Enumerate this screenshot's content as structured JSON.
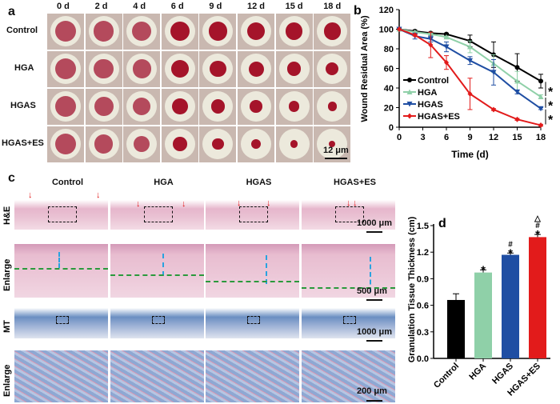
{
  "panel_a": {
    "label": "a",
    "days": [
      "0 d",
      "2 d",
      "4 d",
      "6 d",
      "9 d",
      "12 d",
      "15 d",
      "18 d"
    ],
    "groups": [
      "Control",
      "HGA",
      "HGAS",
      "HGAS+ES"
    ],
    "scale": "12 μm"
  },
  "panel_c": {
    "label": "c",
    "groups": [
      "Control",
      "HGA",
      "HGAS",
      "HGAS+ES"
    ],
    "rows": [
      "H&E",
      "Enlarge",
      "MT",
      "Enlarge"
    ],
    "scales": [
      "1000 μm",
      "500 μm",
      "1000 μm",
      "200 μm"
    ]
  },
  "colors": {
    "control": "#000000",
    "hga": "#8fd0a8",
    "hgas": "#1f4ea3",
    "hgas_es": "#e21b1b"
  },
  "chart_data": [
    {
      "type": "line",
      "panel_label": "b",
      "title": "",
      "xlabel": "Time (d)",
      "ylabel": "Wound Residual Area (%)",
      "xlim": [
        0,
        18
      ],
      "ylim": [
        0,
        120
      ],
      "xticks": [
        0,
        3,
        6,
        9,
        12,
        15,
        18
      ],
      "yticks": [
        0,
        20,
        40,
        60,
        80,
        100,
        120
      ],
      "legend_position": "bottom-left",
      "x": [
        0,
        2,
        4,
        6,
        9,
        12,
        15,
        18
      ],
      "series": [
        {
          "name": "Control",
          "color": "#000000",
          "marker": "circle",
          "values": [
            100,
            98,
            96,
            95,
            88,
            74,
            61,
            47
          ],
          "errors": [
            0,
            1,
            1,
            1,
            6,
            13,
            14,
            7
          ]
        },
        {
          "name": "HGA",
          "color": "#8fd0a8",
          "marker": "triangle-up",
          "values": [
            100,
            97,
            95,
            92,
            82,
            65,
            47,
            31
          ],
          "errors": [
            0,
            1,
            1,
            1,
            6,
            9,
            10,
            2
          ]
        },
        {
          "name": "HGAS",
          "color": "#1f4ea3",
          "marker": "triangle-down",
          "values": [
            100,
            93,
            90,
            82,
            68,
            56,
            36,
            19
          ],
          "errors": [
            0,
            3,
            3,
            5,
            4,
            13,
            2,
            1
          ]
        },
        {
          "name": "HGAS+ES",
          "color": "#e21b1b",
          "marker": "diamond",
          "values": [
            100,
            94,
            84,
            66,
            34,
            18,
            8,
            2
          ],
          "errors": [
            0,
            1,
            13,
            7,
            16,
            1,
            1,
            1
          ]
        }
      ],
      "annotations": [
        "*",
        "*",
        "*"
      ]
    },
    {
      "type": "bar",
      "panel_label": "d",
      "title": "",
      "xlabel": "",
      "ylabel": "Granulation Tissue Thickness (cm)",
      "ylim": [
        0,
        1.5
      ],
      "yticks": [
        "0.0",
        "0.3",
        "0.6",
        "0.9",
        "1.2",
        "1.5"
      ],
      "categories": [
        "Control",
        "HGA",
        "HGAS",
        "HGAS+ES"
      ],
      "values": [
        0.66,
        0.97,
        1.17,
        1.37
      ],
      "errors": [
        0.07,
        0.03,
        0.02,
        0.03
      ],
      "colors": [
        "#000000",
        "#8fd0a8",
        "#1f4ea3",
        "#e21b1b"
      ],
      "annotations": [
        [],
        [
          "*"
        ],
        [
          "*",
          "#"
        ],
        [
          "*",
          "#",
          "△"
        ]
      ]
    }
  ]
}
